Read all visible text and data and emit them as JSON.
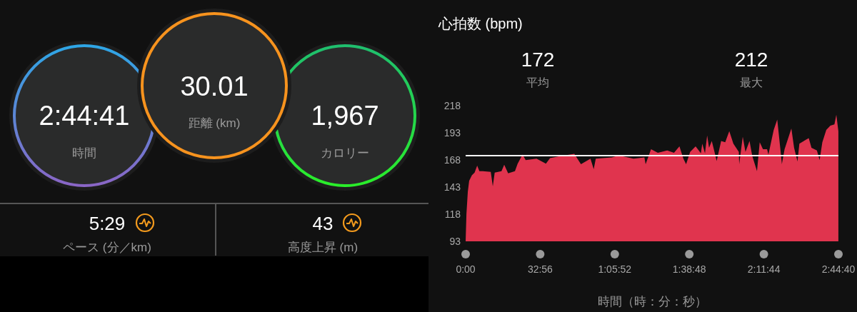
{
  "chart_data": [
    {
      "type": "other",
      "annotations": [
        "2:44:41",
        "時間",
        "30.01",
        "距離 (km)",
        "1,967",
        "カロリー",
        "5:29",
        "ペース (分／km)",
        "43",
        "高度上昇 (m)"
      ]
    },
    {
      "type": "area",
      "title": "心拍数 (bpm)",
      "xlabel": "時間（時：分：秒）",
      "annotations": [
        "172",
        "平均",
        "212",
        "最大"
      ],
      "x": [
        0,
        0.36,
        0.96,
        1.56,
        2.76,
        3.96,
        5.1,
        6.06,
        7.5,
        11.1,
        12.0,
        12.84,
        15.84,
        17.04,
        18.78,
        21.78,
        22.98,
        25.14,
        26.52,
        31.32,
        35.46,
        37.26,
        42.0,
        48.0,
        50.94,
        55.14,
        56.58,
        57.48,
        64.62,
        67.62,
        74.16,
        78.96,
        79.5,
        81.9,
        84.9,
        89.04,
        92.04,
        94.44,
        96.18,
        97.38,
        99.18,
        101.58,
        103.92,
        104.52,
        105.72,
        106.68,
        107.52,
        108.72,
        109.92,
        110.88,
        112.86,
        114.66,
        116.46,
        118.26,
        120.66,
        120.84,
        122.4,
        123.6,
        125.4,
        126.6,
        128.7,
        129.9,
        131.34,
        133.14,
        133.74,
        136.08,
        137.64,
        139.08,
        139.68,
        140.88,
        143.88,
        145.08,
        146.58,
        147.42,
        150.42,
        151.56,
        152.76,
        155.16,
        156.36,
        157.56,
        159.3,
        161.1,
        162.9,
        163.74,
        164.64
      ],
      "series": [
        {
          "color": "#e0344e",
          "values": [
            93,
            118.4,
            138.6,
            148.8,
            153.9,
            156.4,
            162.7,
            157.6,
            157.6,
            156.9,
            143.7,
            156.4,
            157.6,
            163.5,
            155.6,
            157.6,
            164.5,
            172.9,
            167.8,
            169.1,
            164.5,
            169.6,
            171.6,
            173.6,
            164.0,
            169.1,
            159.4,
            169.1,
            170.3,
            172.1,
            169.1,
            170.3,
            164.0,
            177.9,
            174.6,
            176.7,
            174.6,
            180.5,
            169.1,
            164.0,
            175.4,
            180.5,
            174.1,
            183.0,
            174.1,
            190.6,
            179.2,
            185.5,
            175.4,
            167.0,
            185.5,
            184.3,
            194.4,
            183.0,
            175.4,
            164.0,
            189.3,
            175.4,
            185.5,
            171.6,
            157.6,
            184.3,
            177.9,
            177.9,
            172.9,
            195.7,
            205.1,
            176.7,
            164.0,
            177.9,
            197.0,
            179.2,
            166.5,
            183.0,
            186.8,
            188.1,
            179.2,
            176.7,
            167.8,
            184.3,
            195.7,
            199.5,
            200.8,
            209.6,
            194.4
          ]
        }
      ],
      "xlim": [
        0,
        164.667
      ],
      "xticks": [
        {
          "value": 0,
          "label": "0:00"
        },
        {
          "value": 32.933,
          "label": "32:56"
        },
        {
          "value": 65.867,
          "label": "1:05:52"
        },
        {
          "value": 98.8,
          "label": "1:38:48"
        },
        {
          "value": 131.733,
          "label": "2:11:44"
        },
        {
          "value": 164.667,
          "label": "2:44:40"
        }
      ],
      "ylim": [
        93,
        218
      ],
      "yticks": [
        93,
        118,
        143,
        168,
        193,
        218
      ],
      "ref_lines": [
        {
          "axis": "y",
          "value": 172,
          "color": "#ffffff"
        }
      ]
    }
  ]
}
